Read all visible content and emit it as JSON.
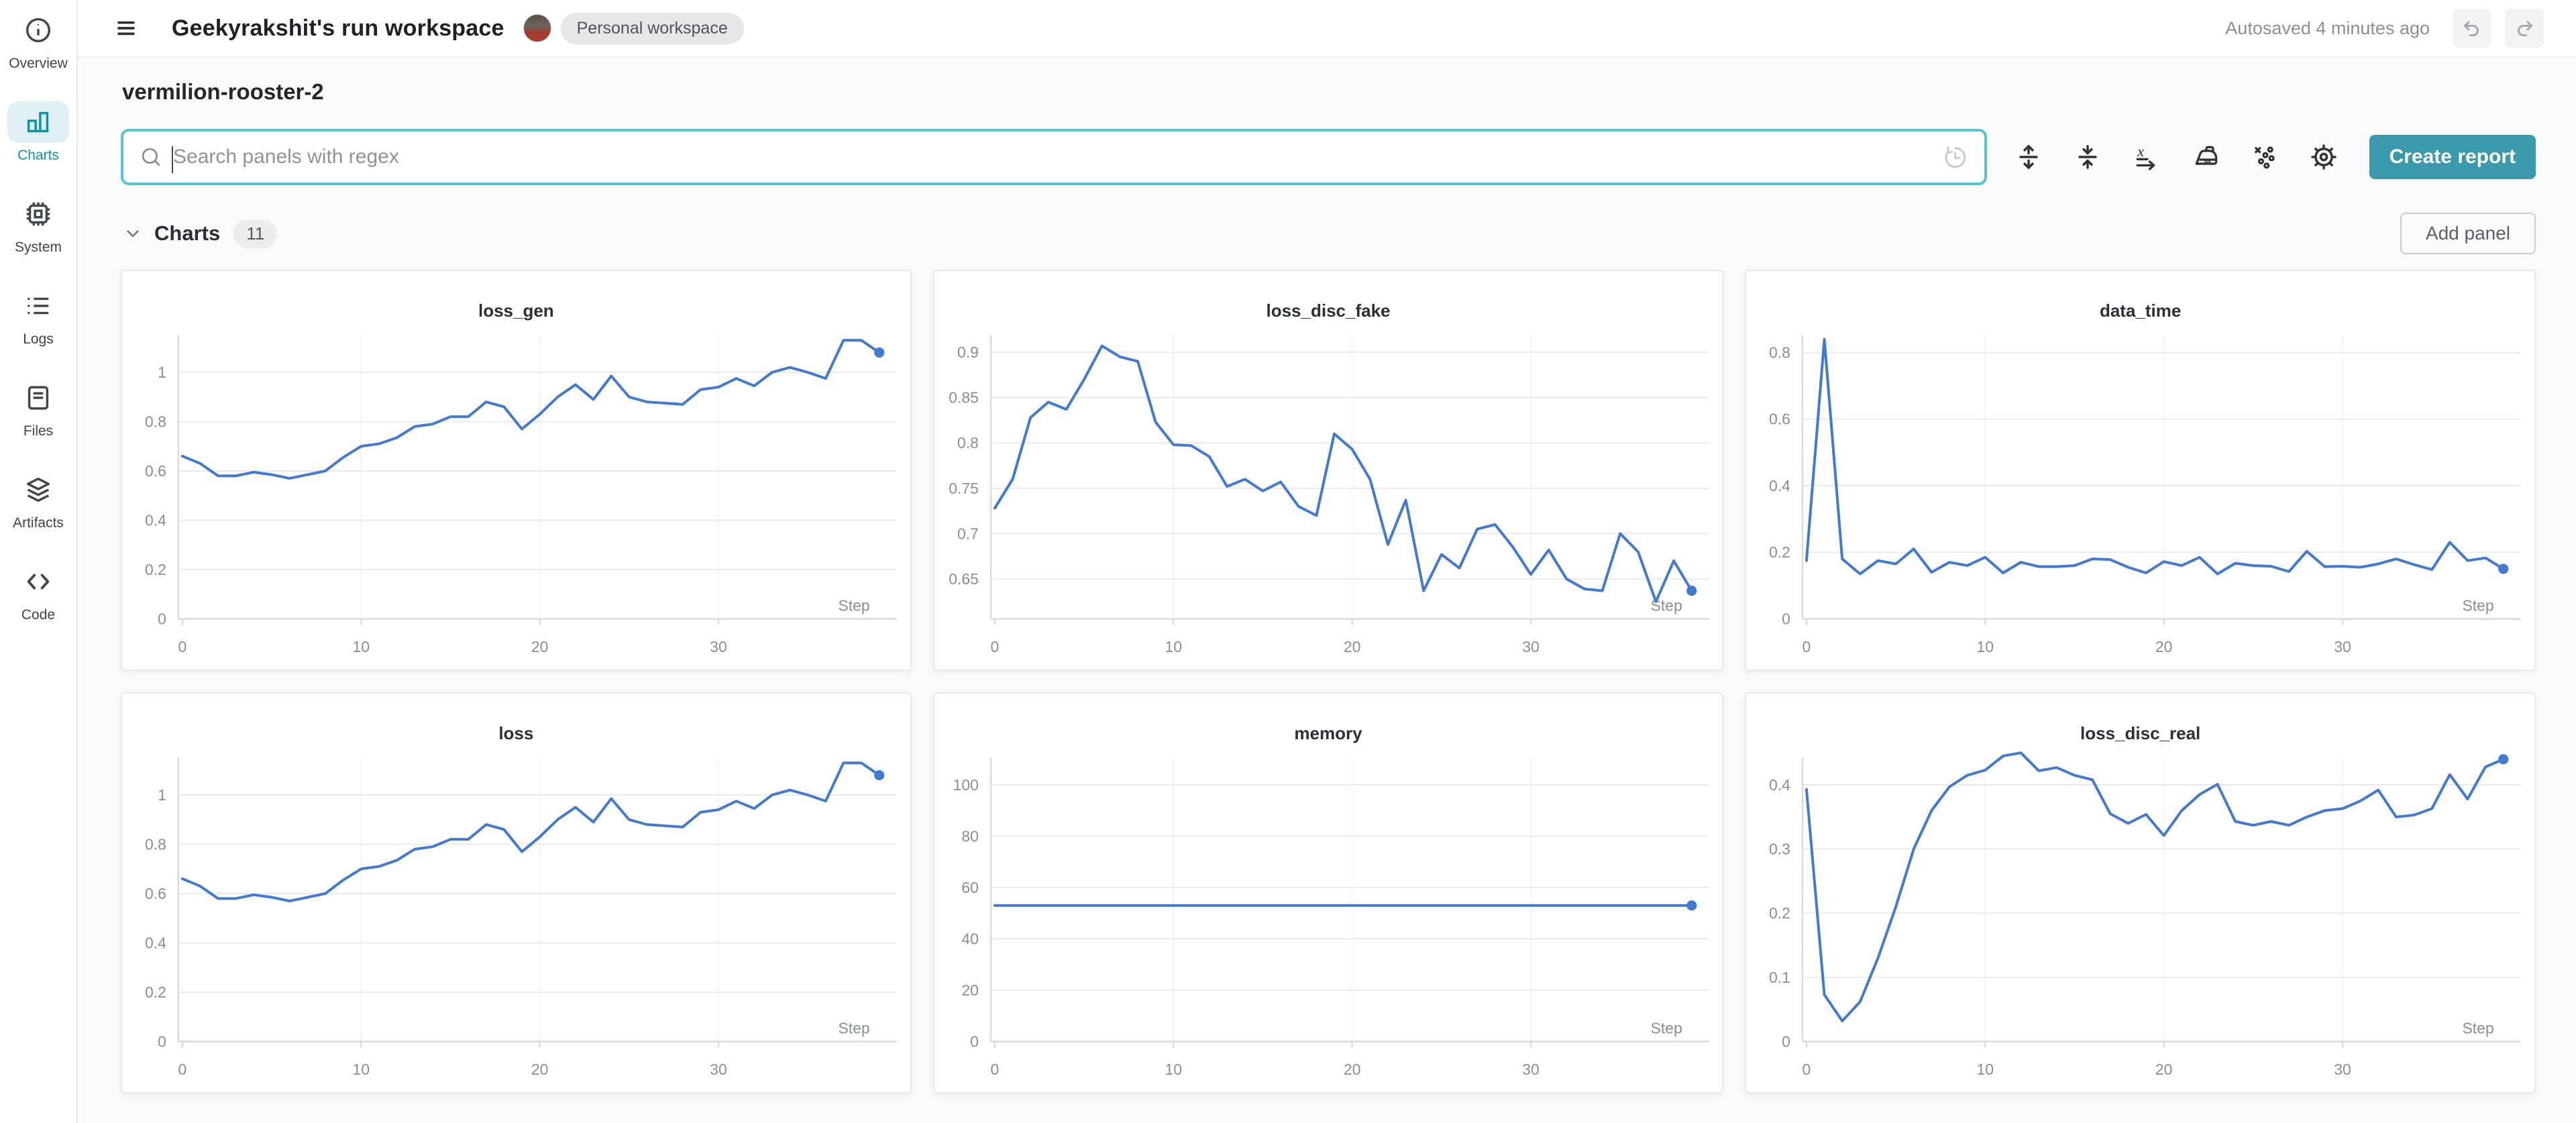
{
  "colors": {
    "accent_teal": "#3a9aac",
    "search_border_teal": "#56c5d1",
    "active_nav_teal": "#0c95a5",
    "line_blue": "#4279d1",
    "grid_line": "#e9ebee",
    "axis_line": "#d7d9dd"
  },
  "topbar": {
    "title": "Geekyrakshit's run workspace",
    "workspace_badge": "Personal workspace",
    "autosave_status": "Autosaved 4 minutes ago",
    "icons": [
      "hamburger-icon",
      "undo-icon",
      "redo-icon"
    ]
  },
  "sidebar": {
    "items": [
      {
        "label": "Overview",
        "icon": "info-icon",
        "active": false
      },
      {
        "label": "Charts",
        "icon": "bar-chart-icon",
        "active": true
      },
      {
        "label": "System",
        "icon": "cpu-icon",
        "active": false
      },
      {
        "label": "Logs",
        "icon": "list-icon",
        "active": false
      },
      {
        "label": "Files",
        "icon": "document-icon",
        "active": false
      },
      {
        "label": "Artifacts",
        "icon": "layers-icon",
        "active": false
      },
      {
        "label": "Code",
        "icon": "code-icon",
        "active": false
      }
    ]
  },
  "run": {
    "name": "vermilion-rooster-2"
  },
  "search": {
    "placeholder": "Search panels with regex",
    "value": ""
  },
  "toolbar": {
    "create_report_label": "Create report",
    "icons": [
      "clock-history-icon",
      "expand-panels-icon",
      "collapse-panels-icon",
      "x-axis-icon",
      "iron-icon",
      "scatter-points-icon",
      "gear-icon"
    ]
  },
  "section": {
    "title": "Charts",
    "count": "11",
    "add_panel_label": "Add panel"
  },
  "chart_data": [
    {
      "type": "line",
      "title": "loss_gen",
      "xlabel": "Step",
      "xticks": [
        0,
        10,
        20,
        30
      ],
      "x_range": [
        0,
        39
      ],
      "yticks": [
        0,
        0.2,
        0.4,
        0.6,
        0.8,
        1
      ],
      "ylim": [
        0,
        1.1514
      ],
      "values": [
        0.66,
        0.63,
        0.58,
        0.58,
        0.595,
        0.585,
        0.57,
        0.585,
        0.6,
        0.655,
        0.7,
        0.71,
        0.735,
        0.78,
        0.79,
        0.82,
        0.82,
        0.88,
        0.86,
        0.77,
        0.83,
        0.9,
        0.95,
        0.89,
        0.985,
        0.9,
        0.88,
        0.875,
        0.87,
        0.93,
        0.94,
        0.975,
        0.945,
        1.0,
        1.02,
        1.0,
        0.975,
        1.13,
        1.13,
        1.08
      ]
    },
    {
      "type": "line",
      "title": "loss_disc_fake",
      "xlabel": "Step",
      "xticks": [
        0,
        10,
        20,
        30
      ],
      "x_range": [
        0,
        39
      ],
      "yticks": [
        0.65,
        0.7,
        0.75,
        0.8,
        0.85,
        0.9
      ],
      "ylim": [
        0.606,
        0.919
      ],
      "values": [
        0.728,
        0.76,
        0.828,
        0.845,
        0.837,
        0.87,
        0.907,
        0.895,
        0.89,
        0.823,
        0.798,
        0.797,
        0.785,
        0.752,
        0.76,
        0.747,
        0.757,
        0.73,
        0.72,
        0.81,
        0.793,
        0.76,
        0.688,
        0.737,
        0.637,
        0.677,
        0.662,
        0.705,
        0.71,
        0.685,
        0.655,
        0.682,
        0.65,
        0.639,
        0.637,
        0.7,
        0.68,
        0.625,
        0.67,
        0.637
      ]
    },
    {
      "type": "line",
      "title": "data_time",
      "xlabel": "Step",
      "xticks": [
        0,
        10,
        20,
        30
      ],
      "x_range": [
        0,
        39
      ],
      "yticks": [
        0,
        0.2,
        0.4,
        0.6,
        0.8
      ],
      "ylim": [
        0,
        0.8526
      ],
      "values": [
        0.175,
        0.84,
        0.18,
        0.135,
        0.175,
        0.165,
        0.21,
        0.14,
        0.17,
        0.16,
        0.185,
        0.138,
        0.17,
        0.157,
        0.157,
        0.16,
        0.18,
        0.178,
        0.155,
        0.138,
        0.172,
        0.16,
        0.185,
        0.135,
        0.167,
        0.16,
        0.158,
        0.142,
        0.203,
        0.157,
        0.158,
        0.155,
        0.165,
        0.18,
        0.163,
        0.148,
        0.23,
        0.175,
        0.183,
        0.15
      ]
    },
    {
      "type": "line",
      "title": "loss",
      "xlabel": "Step",
      "xticks": [
        0,
        10,
        20,
        30
      ],
      "x_range": [
        0,
        39
      ],
      "yticks": [
        0,
        0.2,
        0.4,
        0.6,
        0.8,
        1
      ],
      "ylim": [
        0,
        1.1514
      ],
      "values": [
        0.66,
        0.63,
        0.58,
        0.58,
        0.595,
        0.585,
        0.57,
        0.585,
        0.6,
        0.655,
        0.7,
        0.71,
        0.735,
        0.78,
        0.79,
        0.82,
        0.82,
        0.88,
        0.86,
        0.77,
        0.83,
        0.9,
        0.95,
        0.89,
        0.985,
        0.9,
        0.88,
        0.875,
        0.87,
        0.93,
        0.94,
        0.975,
        0.945,
        1.0,
        1.02,
        1.0,
        0.975,
        1.13,
        1.13,
        1.08
      ]
    },
    {
      "type": "line",
      "title": "memory",
      "xlabel": "Step",
      "xticks": [
        0,
        10,
        20,
        30
      ],
      "x_range": [
        0,
        39
      ],
      "yticks": [
        0,
        20,
        40,
        60,
        80,
        100
      ],
      "ylim": [
        0,
        110.6
      ],
      "values": [
        53,
        53,
        53,
        53,
        53,
        53,
        53,
        53,
        53,
        53,
        53,
        53,
        53,
        53,
        53,
        53,
        53,
        53,
        53,
        53,
        53,
        53,
        53,
        53,
        53,
        53,
        53,
        53,
        53,
        53,
        53,
        53,
        53,
        53,
        53,
        53,
        53,
        53,
        53,
        53
      ]
    },
    {
      "type": "line",
      "title": "loss_disc_real",
      "xlabel": "Step",
      "xticks": [
        0,
        10,
        20,
        30
      ],
      "x_range": [
        0,
        39
      ],
      "yticks": [
        0,
        0.1,
        0.2,
        0.3,
        0.4
      ],
      "ylim": [
        0,
        0.4425
      ],
      "values": [
        0.393,
        0.073,
        0.032,
        0.062,
        0.13,
        0.21,
        0.3,
        0.36,
        0.397,
        0.415,
        0.423,
        0.445,
        0.45,
        0.422,
        0.427,
        0.415,
        0.408,
        0.355,
        0.34,
        0.354,
        0.321,
        0.36,
        0.385,
        0.401,
        0.343,
        0.337,
        0.343,
        0.337,
        0.35,
        0.36,
        0.363,
        0.375,
        0.392,
        0.35,
        0.353,
        0.363,
        0.416,
        0.378,
        0.428,
        0.44
      ]
    }
  ]
}
